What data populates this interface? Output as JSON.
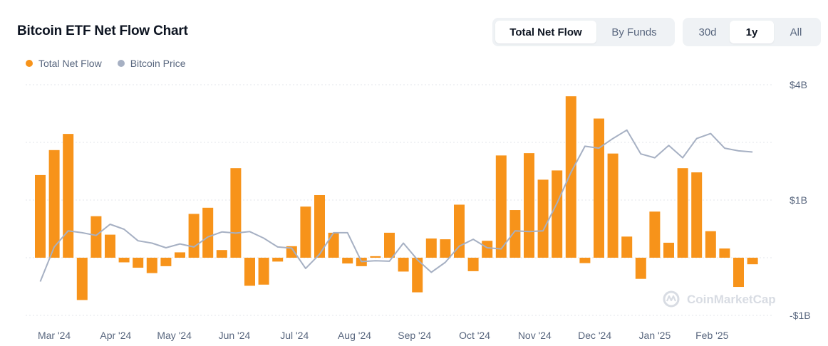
{
  "header": {
    "title": "Bitcoin ETF Net Flow Chart",
    "view_tabs": [
      {
        "label": "Total Net Flow",
        "active": true
      },
      {
        "label": "By Funds",
        "active": false
      }
    ],
    "range_tabs": [
      {
        "label": "30d",
        "active": false
      },
      {
        "label": "1y",
        "active": true
      },
      {
        "label": "All",
        "active": false
      }
    ]
  },
  "legend": [
    {
      "label": "Total Net Flow",
      "color": "#f7931a"
    },
    {
      "label": "Bitcoin Price",
      "color": "#a6b0c3"
    }
  ],
  "watermark": "CoinMarketCap",
  "colors": {
    "bar": "#f7931a",
    "price_line": "#a6b0c3",
    "grid": "#e3e6eb"
  },
  "chart_data": {
    "type": "bar",
    "title": "Bitcoin ETF Net Flow Chart",
    "xlabel": "",
    "ylabel": "",
    "ylim": [
      -1.5,
      4.5
    ],
    "y_ticks": [
      {
        "label": "$4B",
        "value": 4.5
      },
      {
        "label": "$1B",
        "value": 1.5
      },
      {
        "label": "-$1B",
        "value": -1.5
      }
    ],
    "x_ticks": [
      "Mar '24",
      "Apr '24",
      "May '24",
      "Jun '24",
      "Jul '24",
      "Aug '24",
      "Sep '24",
      "Oct '24",
      "Nov '24",
      "Dec '24",
      "Jan '25",
      "Feb '25"
    ],
    "x_tick_positions": [
      1.0,
      5.4,
      9.6,
      13.9,
      18.2,
      22.5,
      26.8,
      31.1,
      35.4,
      39.7,
      44.0,
      48.1
    ],
    "grid": true,
    "legend_position": "top-left",
    "series": [
      {
        "name": "Total Net Flow",
        "type": "bar",
        "values": [
          2.15,
          2.8,
          3.22,
          -1.1,
          1.08,
          0.6,
          -0.12,
          -0.26,
          -0.4,
          -0.22,
          0.14,
          1.14,
          1.3,
          0.2,
          2.33,
          -0.73,
          -0.7,
          -0.1,
          0.3,
          1.33,
          1.63,
          0.65,
          -0.15,
          -0.22,
          0.04,
          0.65,
          -0.36,
          -0.9,
          0.5,
          0.48,
          1.38,
          -0.35,
          0.44,
          2.66,
          1.24,
          2.72,
          2.03,
          2.27,
          4.2,
          -0.14,
          3.62,
          2.71,
          0.55,
          -0.55,
          1.2,
          0.39,
          2.33,
          2.22,
          0.69,
          0.24,
          -0.76,
          -0.17
        ]
      },
      {
        "name": "Bitcoin Price",
        "type": "line",
        "values": [
          -0.62,
          0.28,
          0.7,
          0.65,
          0.58,
          0.87,
          0.74,
          0.44,
          0.38,
          0.26,
          0.36,
          0.28,
          0.54,
          0.67,
          0.64,
          0.68,
          0.51,
          0.28,
          0.25,
          -0.28,
          0.09,
          0.65,
          0.65,
          -0.1,
          -0.08,
          -0.09,
          0.38,
          -0.05,
          -0.38,
          -0.12,
          0.3,
          0.48,
          0.26,
          0.23,
          0.7,
          0.68,
          0.7,
          1.42,
          2.22,
          2.9,
          2.85,
          3.1,
          3.32,
          2.7,
          2.6,
          2.92,
          2.6,
          3.1,
          3.23,
          2.85,
          2.78,
          2.75
        ]
      }
    ]
  }
}
